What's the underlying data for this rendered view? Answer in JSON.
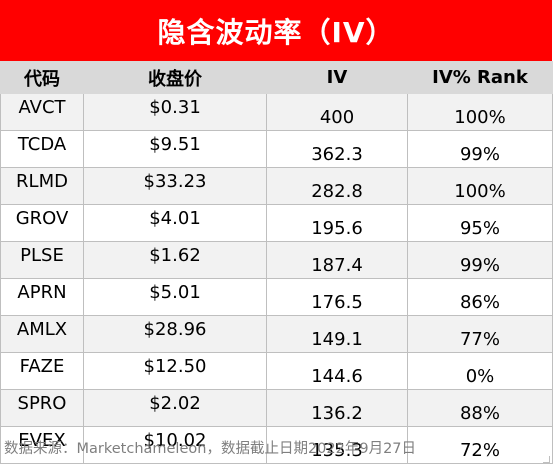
{
  "title": "隐含波动率（IV）",
  "headers": [
    "代码",
    "收盘价",
    "IV",
    "IV% Rank"
  ],
  "rows": [
    {
      "ticker": "AVCT",
      "price": "$0.31",
      "iv": "400",
      "rank": "100%"
    },
    {
      "ticker": "TCDA",
      "price": "$9.51",
      "iv": "362.3",
      "rank": "99%"
    },
    {
      "ticker": "RLMD",
      "price": "$33.23",
      "iv": "282.8",
      "rank": "100%"
    },
    {
      "ticker": "GROV",
      "price": "$4.01",
      "iv": "195.6",
      "rank": "95%"
    },
    {
      "ticker": "PLSE",
      "price": "$1.62",
      "iv": "187.4",
      "rank": "99%"
    },
    {
      "ticker": "APRN",
      "price": "$5.01",
      "iv": "176.5",
      "rank": "86%"
    },
    {
      "ticker": "AMLX",
      "price": "$28.96",
      "iv": "149.1",
      "rank": "77%"
    },
    {
      "ticker": "FAZE",
      "price": "$12.50",
      "iv": "144.6",
      "rank": "0%"
    },
    {
      "ticker": "SPRO",
      "price": "$2.02",
      "iv": "136.2",
      "rank": "88%"
    },
    {
      "ticker": "EVEX",
      "price": "$10.02",
      "iv": "135.3",
      "rank": "72%"
    }
  ],
  "footer": "数据来源：Marketchameleon，数据截止日期2022年9月27日",
  "colors": {
    "title_bg": "#ff0000",
    "header_bg": "#d9d9d9",
    "row_shade": "#f2f2f2"
  }
}
